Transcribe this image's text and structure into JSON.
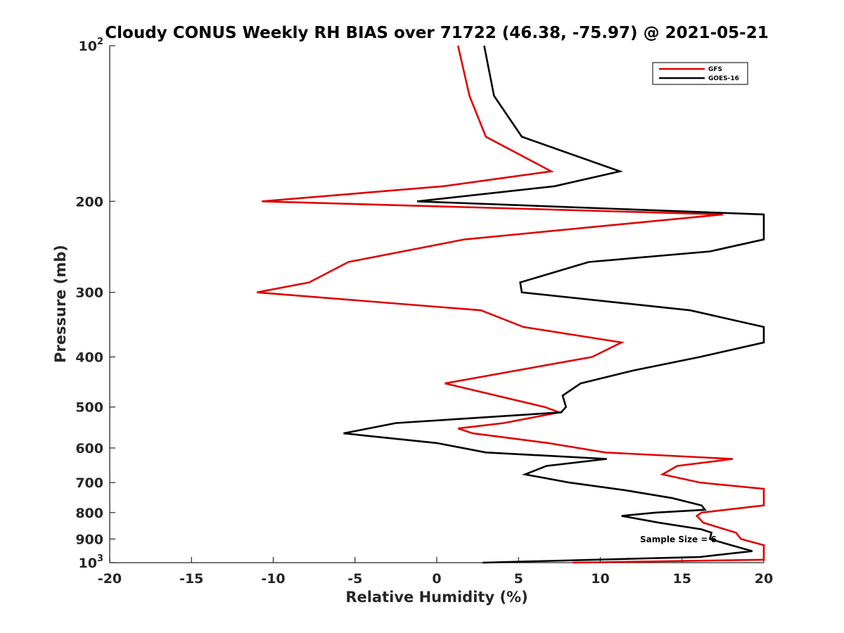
{
  "chart_data": {
    "type": "line",
    "title": "Cloudy CONUS Weekly RH BIAS over 71722 (46.38, -75.97) @ 2021-05-21",
    "xlabel": "Relative Humidity (%)",
    "ylabel": "Pressure (mb)",
    "xlim": [
      -20,
      20
    ],
    "ylim": [
      100,
      1000
    ],
    "yscale": "log",
    "y_reversed": true,
    "xticks": [
      "-20",
      "-15",
      "-10",
      "-5",
      "0",
      "5",
      "10",
      "15",
      "20"
    ],
    "yticks": [
      {
        "value": 100,
        "label": "10",
        "exp": "2"
      },
      {
        "value": 200,
        "label": "200"
      },
      {
        "value": 300,
        "label": "300"
      },
      {
        "value": 400,
        "label": "400"
      },
      {
        "value": 500,
        "label": "500"
      },
      {
        "value": 600,
        "label": "600"
      },
      {
        "value": 700,
        "label": "700"
      },
      {
        "value": 800,
        "label": "800"
      },
      {
        "value": 900,
        "label": "900"
      },
      {
        "value": 1000,
        "label": "10",
        "exp": "3"
      }
    ],
    "legend_position": "top-right",
    "annotation": "Sample Size = 6",
    "series": [
      {
        "name": "GFS",
        "color": "#e00000",
        "points": [
          [
            1.3,
            100
          ],
          [
            2.0,
            125
          ],
          [
            3.0,
            150
          ],
          [
            7.0,
            175
          ],
          [
            0.4,
            187
          ],
          [
            -10.7,
            200
          ],
          [
            17.5,
            212
          ],
          [
            1.7,
            237
          ],
          [
            -5.4,
            262
          ],
          [
            -7.8,
            287
          ],
          [
            -11.0,
            300
          ],
          [
            2.7,
            325
          ],
          [
            5.3,
            350
          ],
          [
            11.3,
            375
          ],
          [
            9.5,
            400
          ],
          [
            0.5,
            450
          ],
          [
            6.6,
            500
          ],
          [
            7.5,
            512
          ],
          [
            4.1,
            537
          ],
          [
            1.3,
            550
          ],
          [
            2.2,
            562
          ],
          [
            6.8,
            587
          ],
          [
            10.3,
            612
          ],
          [
            18.1,
            630
          ],
          [
            14.7,
            650
          ],
          [
            13.8,
            675
          ],
          [
            16.1,
            700
          ],
          [
            20.0,
            720
          ],
          [
            20.0,
            775
          ],
          [
            16.2,
            800
          ],
          [
            15.9,
            812
          ],
          [
            16.3,
            837
          ],
          [
            18.3,
            875
          ],
          [
            18.6,
            900
          ],
          [
            20.0,
            925
          ],
          [
            20.0,
            987
          ],
          [
            8.3,
            1000
          ]
        ]
      },
      {
        "name": "GOES-16",
        "color": "#000000",
        "points": [
          [
            2.9,
            100
          ],
          [
            3.5,
            125
          ],
          [
            5.2,
            150
          ],
          [
            11.2,
            175
          ],
          [
            7.2,
            187
          ],
          [
            -1.2,
            200
          ],
          [
            20.0,
            212
          ],
          [
            20.0,
            237
          ],
          [
            16.7,
            250
          ],
          [
            9.3,
            262
          ],
          [
            5.1,
            287
          ],
          [
            5.2,
            300
          ],
          [
            15.5,
            325
          ],
          [
            20.0,
            350
          ],
          [
            20.0,
            375
          ],
          [
            16.1,
            400
          ],
          [
            12.0,
            425
          ],
          [
            8.8,
            450
          ],
          [
            7.7,
            475
          ],
          [
            7.9,
            500
          ],
          [
            7.6,
            512
          ],
          [
            -2.5,
            537
          ],
          [
            -5.7,
            562
          ],
          [
            0.0,
            587
          ],
          [
            3.0,
            612
          ],
          [
            10.4,
            630
          ],
          [
            6.7,
            650
          ],
          [
            5.4,
            675
          ],
          [
            8.1,
            700
          ],
          [
            11.6,
            725
          ],
          [
            14.4,
            750
          ],
          [
            16.2,
            775
          ],
          [
            16.4,
            790
          ],
          [
            13.4,
            800
          ],
          [
            11.3,
            812
          ],
          [
            13.6,
            837
          ],
          [
            16.2,
            862
          ],
          [
            16.8,
            875
          ],
          [
            16.7,
            900
          ],
          [
            18.0,
            925
          ],
          [
            19.3,
            950
          ],
          [
            16.1,
            975
          ],
          [
            2.8,
            1000
          ]
        ]
      }
    ]
  }
}
